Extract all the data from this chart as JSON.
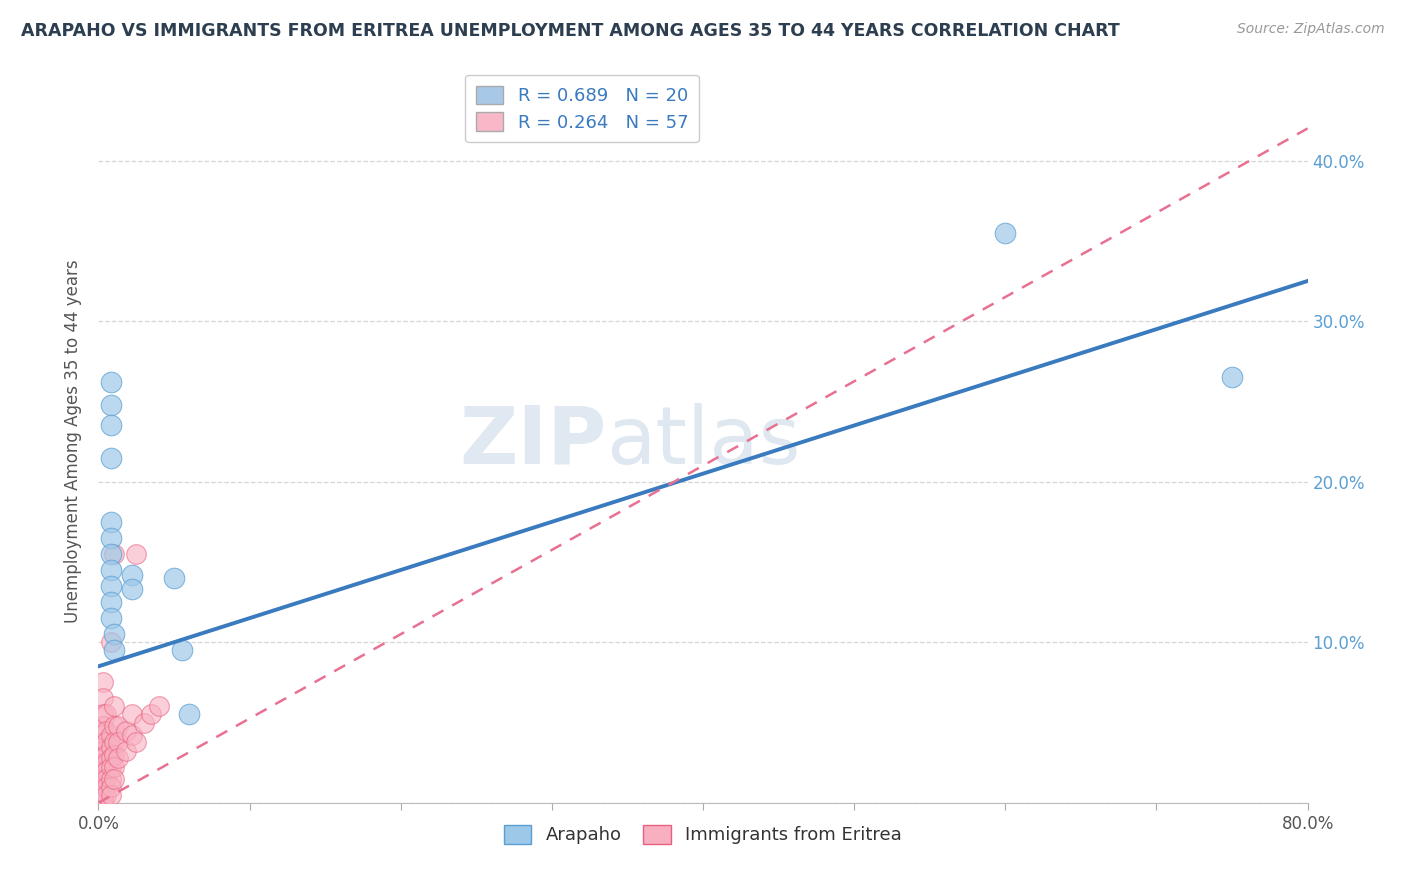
{
  "title": "ARAPAHO VS IMMIGRANTS FROM ERITREA UNEMPLOYMENT AMONG AGES 35 TO 44 YEARS CORRELATION CHART",
  "source_text": "Source: ZipAtlas.com",
  "ylabel": "Unemployment Among Ages 35 to 44 years",
  "xlim": [
    0.0,
    0.8
  ],
  "ylim": [
    0.0,
    0.45
  ],
  "xticks": [
    0.0,
    0.1,
    0.2,
    0.3,
    0.4,
    0.5,
    0.6,
    0.7,
    0.8
  ],
  "xtick_labels_show": [
    "0.0%",
    "",
    "",
    "",
    "",
    "",
    "",
    "",
    "80.0%"
  ],
  "yticks": [
    0.0,
    0.1,
    0.2,
    0.3,
    0.4
  ],
  "ytick_labels": [
    "",
    "10.0%",
    "20.0%",
    "30.0%",
    "40.0%"
  ],
  "legend_r_entries": [
    {
      "label": "R = 0.689   N = 20",
      "color": "#a8c8e8"
    },
    {
      "label": "R = 0.264   N = 57",
      "color": "#f8b8c8"
    }
  ],
  "legend_labels_bottom": [
    "Arapaho",
    "Immigrants from Eritrea"
  ],
  "arapaho_color": "#9ec8e8",
  "eritrea_color": "#f8b0c0",
  "arapaho_edge_color": "#5a9fd4",
  "eritrea_edge_color": "#e86080",
  "arapaho_line_color": "#3a7abf",
  "eritrea_line_color": "#e87090",
  "arapaho_line": [
    [
      0.0,
      0.085
    ],
    [
      0.8,
      0.325
    ]
  ],
  "eritrea_line": [
    [
      0.0,
      0.0
    ],
    [
      0.8,
      0.42
    ]
  ],
  "watermark_part1": "ZIP",
  "watermark_part2": "atlas",
  "arapaho_points": [
    [
      0.008,
      0.248
    ],
    [
      0.008,
      0.262
    ],
    [
      0.008,
      0.235
    ],
    [
      0.008,
      0.215
    ],
    [
      0.008,
      0.175
    ],
    [
      0.008,
      0.165
    ],
    [
      0.008,
      0.155
    ],
    [
      0.008,
      0.145
    ],
    [
      0.008,
      0.135
    ],
    [
      0.008,
      0.125
    ],
    [
      0.008,
      0.115
    ],
    [
      0.01,
      0.105
    ],
    [
      0.01,
      0.095
    ],
    [
      0.022,
      0.142
    ],
    [
      0.022,
      0.133
    ],
    [
      0.05,
      0.14
    ],
    [
      0.055,
      0.095
    ],
    [
      0.06,
      0.055
    ],
    [
      0.6,
      0.355
    ],
    [
      0.75,
      0.265
    ]
  ],
  "eritrea_points": [
    [
      0.003,
      0.075
    ],
    [
      0.003,
      0.065
    ],
    [
      0.003,
      0.055
    ],
    [
      0.003,
      0.048
    ],
    [
      0.003,
      0.042
    ],
    [
      0.003,
      0.038
    ],
    [
      0.003,
      0.035
    ],
    [
      0.003,
      0.032
    ],
    [
      0.003,
      0.028
    ],
    [
      0.003,
      0.025
    ],
    [
      0.003,
      0.022
    ],
    [
      0.003,
      0.02
    ],
    [
      0.003,
      0.018
    ],
    [
      0.003,
      0.015
    ],
    [
      0.003,
      0.013
    ],
    [
      0.003,
      0.011
    ],
    [
      0.003,
      0.009
    ],
    [
      0.003,
      0.007
    ],
    [
      0.003,
      0.005
    ],
    [
      0.003,
      0.003
    ],
    [
      0.003,
      0.001
    ],
    [
      0.005,
      0.055
    ],
    [
      0.005,
      0.045
    ],
    [
      0.005,
      0.038
    ],
    [
      0.005,
      0.03
    ],
    [
      0.005,
      0.025
    ],
    [
      0.005,
      0.02
    ],
    [
      0.005,
      0.015
    ],
    [
      0.005,
      0.01
    ],
    [
      0.005,
      0.005
    ],
    [
      0.008,
      0.042
    ],
    [
      0.008,
      0.035
    ],
    [
      0.008,
      0.028
    ],
    [
      0.008,
      0.022
    ],
    [
      0.008,
      0.015
    ],
    [
      0.008,
      0.01
    ],
    [
      0.008,
      0.005
    ],
    [
      0.01,
      0.06
    ],
    [
      0.01,
      0.048
    ],
    [
      0.01,
      0.038
    ],
    [
      0.01,
      0.03
    ],
    [
      0.01,
      0.022
    ],
    [
      0.01,
      0.015
    ],
    [
      0.013,
      0.048
    ],
    [
      0.013,
      0.038
    ],
    [
      0.013,
      0.028
    ],
    [
      0.018,
      0.045
    ],
    [
      0.018,
      0.032
    ],
    [
      0.022,
      0.055
    ],
    [
      0.022,
      0.042
    ],
    [
      0.025,
      0.038
    ],
    [
      0.03,
      0.05
    ],
    [
      0.035,
      0.055
    ],
    [
      0.04,
      0.06
    ],
    [
      0.01,
      0.155
    ],
    [
      0.008,
      0.1
    ],
    [
      0.025,
      0.155
    ]
  ],
  "background_color": "#ffffff",
  "grid_color": "#cccccc",
  "title_color": "#2c3e50",
  "axis_label_color": "#555555",
  "tick_label_color": "#5a9fd4"
}
